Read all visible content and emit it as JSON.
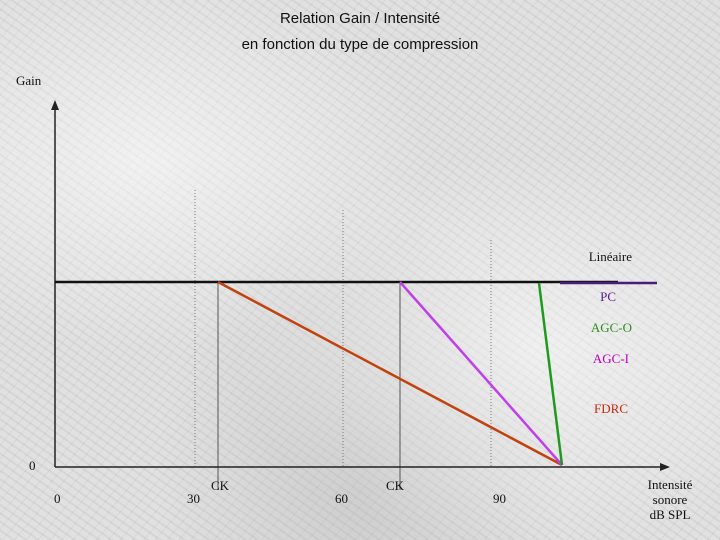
{
  "title": {
    "line1": "Relation Gain / Intensité",
    "line2": "en fonction du type de compression"
  },
  "axes": {
    "y_label": "Gain",
    "y_zero": "0",
    "x_label_lines": [
      "Intensité",
      "sonore",
      "dB SPL"
    ],
    "x_ticks": [
      "0",
      "30",
      "60",
      "90"
    ],
    "ck_labels": [
      "CK",
      "CK"
    ]
  },
  "legend": [
    {
      "label": "Linéaire",
      "color": "#111111"
    },
    {
      "label": "PC",
      "color": "#5a1a8a"
    },
    {
      "label": "AGC-O",
      "color": "#2e8b1e"
    },
    {
      "label": "AGC-I",
      "color": "#b800b8"
    },
    {
      "label": "FDRC",
      "color": "#c0290e"
    }
  ],
  "colors": {
    "lineaire": "#111111",
    "pc": "#4b1c7a",
    "agc_o": "#1f9a1f",
    "agc_i": "#c040e8",
    "fdrc": "#c2410c",
    "axis": "#222222",
    "guide": "#7a7a7a"
  }
}
